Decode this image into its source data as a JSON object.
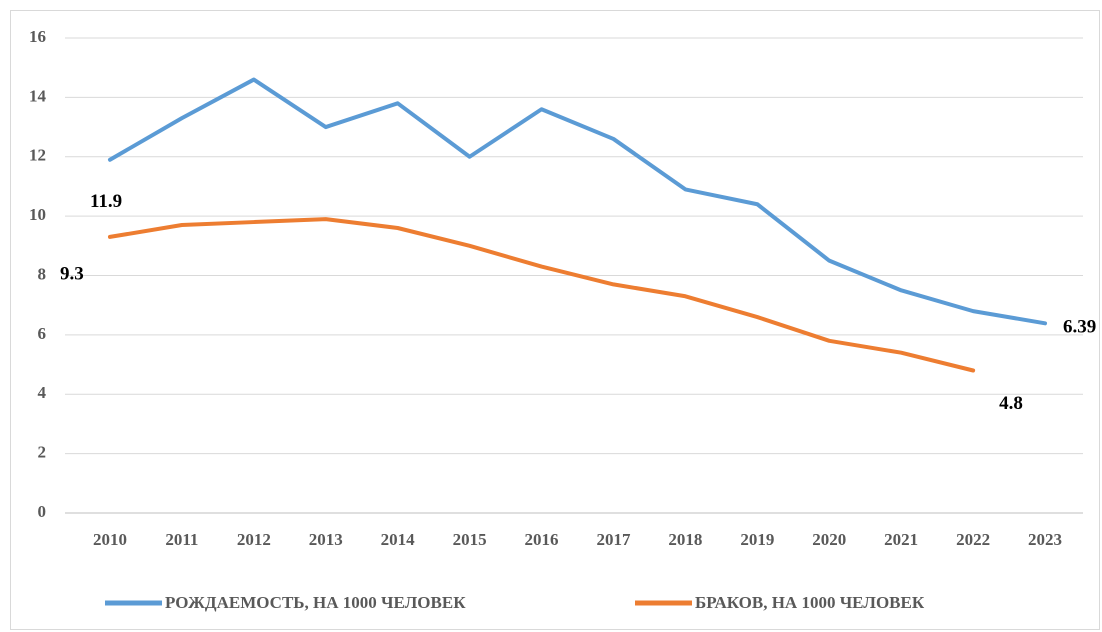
{
  "chart_data": {
    "type": "line",
    "categories": [
      "2010",
      "2011",
      "2012",
      "2013",
      "2014",
      "2015",
      "2016",
      "2017",
      "2018",
      "2019",
      "2020",
      "2021",
      "2022",
      "2023"
    ],
    "series": [
      {
        "name": "РОЖДАЕМОСТЬ, НА 1000 ЧЕЛОВЕК",
        "color": "#5b9bd5",
        "values": [
          11.9,
          13.3,
          14.6,
          13.0,
          13.8,
          12.0,
          13.6,
          12.6,
          10.9,
          10.4,
          8.5,
          7.5,
          6.8,
          6.39
        ],
        "value_labels": [
          "11.9",
          null,
          null,
          null,
          null,
          null,
          null,
          null,
          null,
          null,
          null,
          null,
          null,
          "6.39"
        ]
      },
      {
        "name": "БРАКОВ, НА 1000 ЧЕЛОВЕК",
        "color": "#ed7d31",
        "values": [
          9.3,
          9.7,
          9.8,
          9.9,
          9.6,
          9.0,
          8.3,
          7.7,
          7.3,
          6.6,
          5.8,
          5.4,
          4.8,
          null
        ],
        "value_labels": [
          "9.3",
          null,
          null,
          null,
          null,
          null,
          null,
          null,
          null,
          null,
          null,
          null,
          "4.8",
          null
        ]
      }
    ],
    "ylim": [
      0,
      16
    ],
    "yticks": [
      0,
      2,
      4,
      6,
      8,
      10,
      12,
      14,
      16
    ],
    "grid": true,
    "legend": "bottom"
  }
}
